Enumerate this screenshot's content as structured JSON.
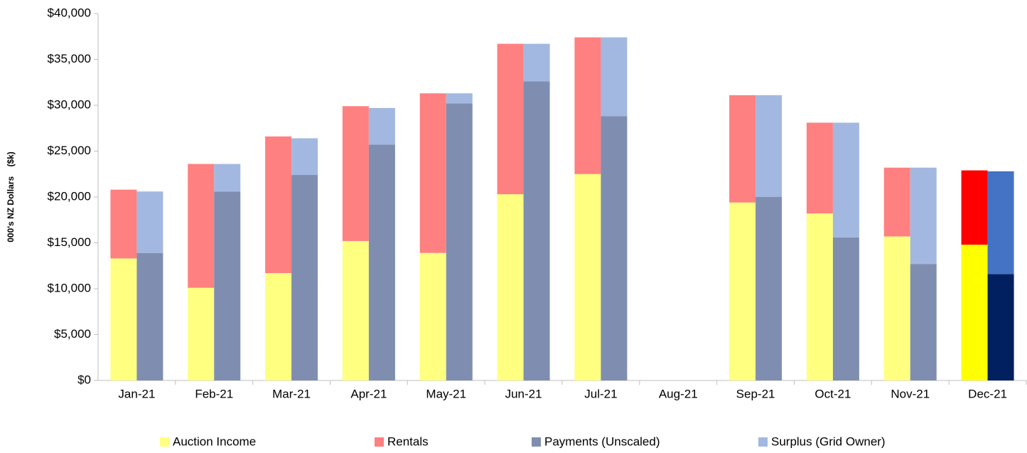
{
  "chart_data": {
    "type": "grouped_stacked_bar",
    "y_axis_label": "000's NZ Dollars    ($k)",
    "categories": [
      "Jan-21",
      "Feb-21",
      "Mar-21",
      "Apr-21",
      "May-21",
      "Jun-21",
      "Jul-21",
      "Aug-21",
      "Sep-21",
      "Oct-21",
      "Nov-21",
      "Dec-21"
    ],
    "highlight_category": "Dec-21",
    "series": [
      {
        "name": "Auction Income",
        "color": "#ffff80",
        "highlight_color": "#ffff00",
        "stack": 0,
        "values": [
          13300,
          10100,
          11700,
          15200,
          13900,
          20300,
          22500,
          null,
          19400,
          18200,
          15700,
          14800
        ]
      },
      {
        "name": "Rentals",
        "color": "#ff8080",
        "highlight_color": "#ff0000",
        "stack": 0,
        "values": [
          7500,
          13500,
          14900,
          14700,
          17400,
          16400,
          14900,
          null,
          11700,
          9900,
          7500,
          8100
        ]
      },
      {
        "name": "Payments (Unscaled)",
        "color": "#7f8eb0",
        "highlight_color": "#002060",
        "stack": 1,
        "values": [
          13900,
          20600,
          22400,
          25700,
          30200,
          32600,
          28800,
          null,
          20000,
          15600,
          12700,
          11600
        ]
      },
      {
        "name": "Surplus (Grid Owner)",
        "color": "#a2b8e0",
        "highlight_color": "#4472c4",
        "stack": 1,
        "values": [
          6700,
          3000,
          4000,
          4000,
          1100,
          4100,
          8600,
          null,
          11100,
          12500,
          10500,
          11200
        ]
      }
    ],
    "ylim": [
      0,
      40000
    ],
    "yticks": [
      {
        "value": 0,
        "label": "$0"
      },
      {
        "value": 5000,
        "label": "$5,000"
      },
      {
        "value": 10000,
        "label": "$10,000"
      },
      {
        "value": 15000,
        "label": "$15,000"
      },
      {
        "value": 20000,
        "label": "$20,000"
      },
      {
        "value": 25000,
        "label": "$25,000"
      },
      {
        "value": 30000,
        "label": "$30,000"
      },
      {
        "value": 35000,
        "label": "$35,000"
      },
      {
        "value": 40000,
        "label": "$40,000"
      }
    ],
    "grid": false,
    "legend": "bottom"
  }
}
